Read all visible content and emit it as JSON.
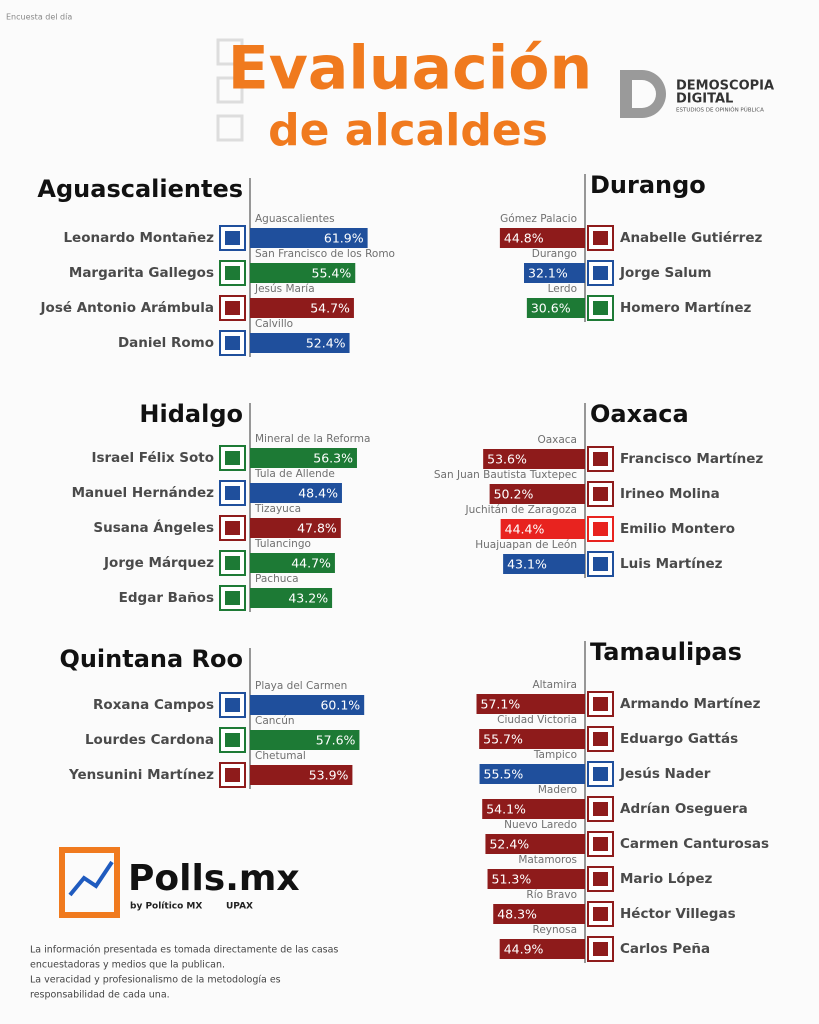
{
  "header": {
    "note": "Encuesta del día",
    "title_line1": "Evaluación",
    "title_line2": "de alcaldes",
    "logo": {
      "name1": "DEMOSCOPIA",
      "name2": "DIGITAL",
      "tagline": "ESTUDIOS DE OPINIÓN PÚBLICA"
    }
  },
  "chart_data": [
    {
      "type": "bar",
      "title": "Aguascalientes",
      "categories": [
        "Leonardo Montañez",
        "Margarita Gallegos",
        "José Antonio Arámbula",
        "Daniel Romo"
      ],
      "cities": [
        "Aguascalientes",
        "San Francisco de los Romo",
        "Jesús María",
        "Calvillo"
      ],
      "values": [
        61.9,
        55.4,
        54.7,
        52.4
      ],
      "value_labels": [
        "61.9%",
        "55.4%",
        "54.7%",
        "52.4%"
      ],
      "colors": [
        "#1f4f9c",
        "#1d7a35",
        "#8e1b1b",
        "#1f4f9c"
      ]
    },
    {
      "type": "bar",
      "title": "Durango",
      "categories": [
        "Anabelle Gutiérrez",
        "Jorge Salum",
        "Homero Martínez"
      ],
      "cities": [
        "Gómez Palacio",
        "Durango",
        "Lerdo"
      ],
      "values": [
        44.8,
        32.1,
        30.6
      ],
      "value_labels": [
        "44.8%",
        "32.1%",
        "30.6%"
      ],
      "colors": [
        "#8e1b1b",
        "#1f4f9c",
        "#1d7a35"
      ]
    },
    {
      "type": "bar",
      "title": "Hidalgo",
      "categories": [
        "Israel Félix Soto",
        "Manuel Hernández",
        "Susana Ángeles",
        "Jorge Márquez",
        "Edgar Baños"
      ],
      "cities": [
        "Mineral de la Reforma",
        "Tula de Allende",
        "Tizayuca",
        "Tulancingo",
        "Pachuca"
      ],
      "values": [
        56.3,
        48.4,
        47.8,
        44.7,
        43.2
      ],
      "value_labels": [
        "56.3%",
        "48.4%",
        "47.8%",
        "44.7%",
        "43.2%"
      ],
      "colors": [
        "#1d7a35",
        "#1f4f9c",
        "#8e1b1b",
        "#1d7a35",
        "#1d7a35"
      ]
    },
    {
      "type": "bar",
      "title": "Oaxaca",
      "categories": [
        "Francisco Martínez",
        "Irineo Molina",
        "Emilio Montero",
        "Luis Martínez"
      ],
      "cities": [
        "Oaxaca",
        "San Juan Bautista Tuxtepec",
        "Juchitán de Zaragoza",
        "Huajuapan de León"
      ],
      "values": [
        53.6,
        50.2,
        44.4,
        43.1
      ],
      "value_labels": [
        "53.6%",
        "50.2%",
        "44.4%",
        "43.1%"
      ],
      "colors": [
        "#8e1b1b",
        "#8e1b1b",
        "#e8231f",
        "#1f4f9c"
      ]
    },
    {
      "type": "bar",
      "title": "Quintana Roo",
      "categories": [
        "Roxana Campos",
        "Lourdes Cardona",
        "Yensunini Martínez"
      ],
      "cities": [
        "Playa del Carmen",
        "Cancún",
        "Chetumal"
      ],
      "values": [
        60.1,
        57.6,
        53.9
      ],
      "value_labels": [
        "60.1%",
        "57.6%",
        "53.9%"
      ],
      "colors": [
        "#1f4f9c",
        "#1d7a35",
        "#8e1b1b"
      ]
    },
    {
      "type": "bar",
      "title": "Tamaulipas",
      "categories": [
        "Armando Martínez",
        "Eduargo Gattás",
        "Jesús Nader",
        "Adrían Oseguera",
        "Carmen Canturosas",
        "Mario López",
        "Héctor Villegas",
        "Carlos Peña"
      ],
      "cities": [
        "Altamira",
        "Ciudad Victoria",
        "Tampico",
        "Madero",
        "Nuevo Laredo",
        "Matamoros",
        "Río Bravo",
        "Reynosa"
      ],
      "values": [
        57.1,
        55.7,
        55.5,
        54.1,
        52.4,
        51.3,
        48.3,
        44.9
      ],
      "value_labels": [
        "57.1%",
        "55.7%",
        "55.5%",
        "54.1%",
        "52.4%",
        "51.3%",
        "48.3%",
        "44.9%"
      ],
      "colors": [
        "#8e1b1b",
        "#8e1b1b",
        "#1f4f9c",
        "#8e1b1b",
        "#8e1b1b",
        "#8e1b1b",
        "#8e1b1b",
        "#8e1b1b"
      ]
    }
  ],
  "footer": {
    "brand": "Polls.mx",
    "by": "by Político MX",
    "partner": "UPAX",
    "disclaimer": [
      "La información presentada es tomada directamente de las casas",
      "encuestadoras y medios que la publican.",
      "La veracidad y profesionalismo de la metodología es",
      "responsabilidad de cada una."
    ]
  }
}
